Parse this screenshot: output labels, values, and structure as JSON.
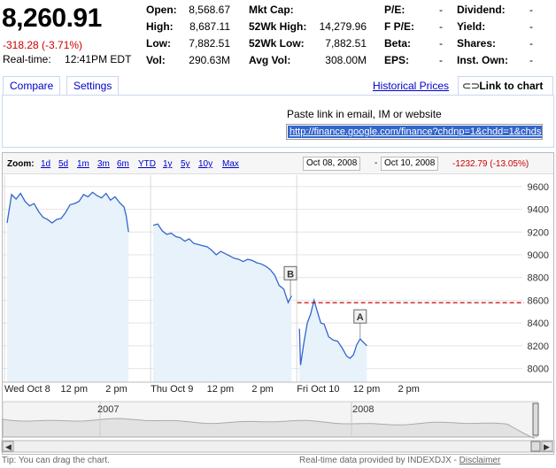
{
  "quote": {
    "price": "8,260.91",
    "change": "-318.28 (-3.71%)",
    "realtime_label": "Real-time:",
    "realtime_time": "12:41PM EDT"
  },
  "stats": [
    {
      "label": "Open:",
      "value": "8,568.67"
    },
    {
      "label": "High:",
      "value": "8,687.11"
    },
    {
      "label": "Low:",
      "value": "7,882.51"
    },
    {
      "label": "Vol:",
      "value": "290.63M"
    },
    {
      "label": "Mkt Cap:",
      "value": ""
    },
    {
      "label": "52Wk High:",
      "value": "14,279.96"
    },
    {
      "label": "52Wk Low:",
      "value": "7,882.51"
    },
    {
      "label": "Avg Vol:",
      "value": "308.00M"
    },
    {
      "label": "P/E:",
      "value": "-"
    },
    {
      "label": "F P/E:",
      "value": "-"
    },
    {
      "label": "Beta:",
      "value": "-"
    },
    {
      "label": "EPS:",
      "value": "-"
    },
    {
      "label": "Dividend:",
      "value": "-"
    },
    {
      "label": "Yield:",
      "value": "-"
    },
    {
      "label": "Shares:",
      "value": "-"
    },
    {
      "label": "Inst. Own:",
      "value": "-"
    }
  ],
  "tabs": {
    "compare": "Compare",
    "settings": "Settings",
    "historical": "Historical Prices",
    "link": "Link to chart"
  },
  "link_panel": {
    "paste_text": "Paste link in email, IM or website",
    "url": "http://finance.google.com/finance?chdnp=1&chdd=1&chds="
  },
  "zoom": {
    "label": "Zoom:",
    "options": [
      "1d",
      "5d",
      "1m",
      "3m",
      "6m",
      "YTD",
      "1y",
      "5y",
      "10y",
      "Max"
    ],
    "from_date": "Oct 08, 2008",
    "to_date": "Oct 10, 2008",
    "range_change": "-1232.79 (-13.05%)",
    "dash": "-"
  },
  "footer": {
    "tip": "Tip: You can drag the chart.",
    "provider": "Real-time data provided by INDEXDJX",
    "sep": " - ",
    "disclaimer": "Disclaimer"
  },
  "colors": {
    "line": "#3366cc",
    "fill": "#e8f2fb",
    "ref_line": "#cc0000",
    "change_neg": "#cc0000"
  },
  "chart_data": {
    "type": "area",
    "title": "",
    "xlabel": "",
    "ylabel": "",
    "ylim": [
      7880,
      9700
    ],
    "y_ticks": [
      8000,
      8200,
      8400,
      8600,
      8800,
      9000,
      9200,
      9400,
      9600
    ],
    "x_ticks": [
      "Wed Oct 8",
      "12 pm",
      "2 pm",
      "Thu Oct 9",
      "12 pm",
      "2 pm",
      "Fri Oct 10",
      "12 pm",
      "2 pm"
    ],
    "x_tick_hours": [
      0,
      2.5,
      4.5,
      6.5,
      9,
      11,
      13,
      15.5,
      17.5
    ],
    "series": [
      {
        "values": [
          [
            0.0,
            9280
          ],
          [
            0.2,
            9530
          ],
          [
            0.4,
            9490
          ],
          [
            0.6,
            9540
          ],
          [
            0.8,
            9470
          ],
          [
            1.0,
            9430
          ],
          [
            1.2,
            9450
          ],
          [
            1.4,
            9380
          ],
          [
            1.6,
            9330
          ],
          [
            1.8,
            9310
          ],
          [
            2.0,
            9280
          ],
          [
            2.2,
            9310
          ],
          [
            2.4,
            9320
          ],
          [
            2.6,
            9370
          ],
          [
            2.8,
            9440
          ],
          [
            3.0,
            9450
          ],
          [
            3.2,
            9470
          ],
          [
            3.4,
            9530
          ],
          [
            3.6,
            9510
          ],
          [
            3.8,
            9550
          ],
          [
            4.0,
            9520
          ],
          [
            4.2,
            9500
          ],
          [
            4.4,
            9540
          ],
          [
            4.6,
            9480
          ],
          [
            4.8,
            9510
          ],
          [
            5.0,
            9460
          ],
          [
            5.2,
            9420
          ],
          [
            5.3,
            9340
          ],
          [
            5.4,
            9200
          ],
          [
            6.5,
            9260
          ],
          [
            6.7,
            9270
          ],
          [
            6.9,
            9210
          ],
          [
            7.1,
            9180
          ],
          [
            7.3,
            9190
          ],
          [
            7.5,
            9160
          ],
          [
            7.7,
            9150
          ],
          [
            7.9,
            9120
          ],
          [
            8.1,
            9140
          ],
          [
            8.3,
            9100
          ],
          [
            8.5,
            9090
          ],
          [
            8.7,
            9080
          ],
          [
            8.9,
            9070
          ],
          [
            9.1,
            9040
          ],
          [
            9.3,
            9000
          ],
          [
            9.5,
            9030
          ],
          [
            9.7,
            9010
          ],
          [
            9.9,
            8990
          ],
          [
            10.1,
            8970
          ],
          [
            10.3,
            8960
          ],
          [
            10.5,
            8940
          ],
          [
            10.7,
            8960
          ],
          [
            10.9,
            8950
          ],
          [
            11.1,
            8930
          ],
          [
            11.3,
            8920
          ],
          [
            11.5,
            8900
          ],
          [
            11.7,
            8870
          ],
          [
            11.9,
            8820
          ],
          [
            12.1,
            8730
          ],
          [
            12.3,
            8700
          ],
          [
            12.5,
            8580
          ],
          [
            12.65,
            8640
          ],
          [
            13.0,
            8350
          ],
          [
            13.05,
            8030
          ],
          [
            13.2,
            8230
          ],
          [
            13.35,
            8400
          ],
          [
            13.5,
            8480
          ],
          [
            13.65,
            8600
          ],
          [
            13.8,
            8500
          ],
          [
            13.95,
            8400
          ],
          [
            14.1,
            8390
          ],
          [
            14.3,
            8280
          ],
          [
            14.5,
            8250
          ],
          [
            14.7,
            8240
          ],
          [
            14.9,
            8180
          ],
          [
            15.1,
            8110
          ],
          [
            15.25,
            8090
          ],
          [
            15.4,
            8120
          ],
          [
            15.55,
            8210
          ],
          [
            15.7,
            8260
          ],
          [
            15.85,
            8230
          ],
          [
            16.0,
            8200
          ]
        ]
      }
    ],
    "reference_line": 8579.19,
    "markers": [
      {
        "label": "B",
        "x": 12.6,
        "y": 8640
      },
      {
        "label": "A",
        "x": 15.7,
        "y": 8260
      }
    ],
    "navigator": {
      "labels": [
        "2007",
        "2008"
      ]
    },
    "grid": true,
    "legend": "none"
  }
}
